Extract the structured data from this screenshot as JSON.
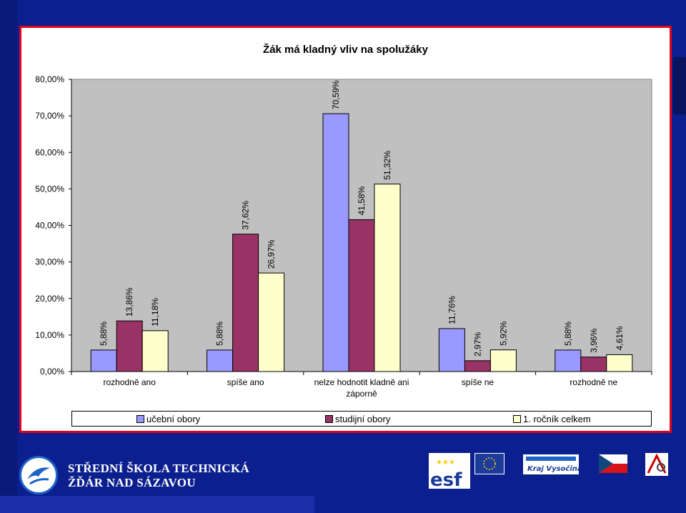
{
  "chart_data": {
    "type": "bar",
    "title": "Žák má kladný vliv na spolužáky",
    "categories": [
      "rozhodně ano",
      "spíše ano",
      "nelze hodnotit kladně ani záporně",
      "spíše ne",
      "rozhodně ne"
    ],
    "category_label_lines": [
      [
        "rozhodně ano"
      ],
      [
        "spíše ano"
      ],
      [
        "nelze hodnotit kladně ani",
        "záporně"
      ],
      [
        "spíše ne"
      ],
      [
        "rozhodně ne"
      ]
    ],
    "series": [
      {
        "name": "učební obory",
        "values": [
          5.88,
          5.88,
          70.59,
          11.76,
          5.88
        ],
        "labels": [
          "5,88%",
          "5,88%",
          "70,59%",
          "11,76%",
          "5,88%"
        ],
        "color": "#9999ff"
      },
      {
        "name": "studijní obory",
        "values": [
          13.86,
          37.62,
          41.58,
          2.97,
          3.96
        ],
        "labels": [
          "13,86%",
          "37,62%",
          "41,58%",
          "2,97%",
          "3,96%"
        ],
        "color": "#993366"
      },
      {
        "name": "1. ročník celkem",
        "values": [
          11.18,
          26.97,
          51.32,
          5.92,
          4.61
        ],
        "labels": [
          "11,18%",
          "26,97%",
          "51,32%",
          "5,92%",
          "4,61%"
        ],
        "color": "#ffffcc"
      }
    ],
    "y_ticks": [
      0,
      10,
      20,
      30,
      40,
      50,
      60,
      70,
      80
    ],
    "y_tick_labels": [
      "0,00%",
      "10,00%",
      "20,00%",
      "30,00%",
      "40,00%",
      "50,00%",
      "60,00%",
      "70,00%",
      "80,00%"
    ],
    "ylim": [
      0,
      80
    ],
    "grid": false,
    "legend_position": "bottom",
    "plot_background": "#c0c0c0"
  },
  "footer": {
    "school_name_line1": "STŘEDNÍ ŠKOLA TECHNICKÁ",
    "school_name_line2": "ŽĎÁR NAD SÁZAVOU",
    "logos": [
      "esf-logo",
      "eu-flag",
      "kraj-vysocina-logo",
      "czech-flag",
      "school-emblem"
    ],
    "kraj_text": "Kraj Vysočina",
    "esf_text": "esf"
  },
  "colors": {
    "background": "#0b1f8f",
    "frame_border": "#e0001a"
  }
}
